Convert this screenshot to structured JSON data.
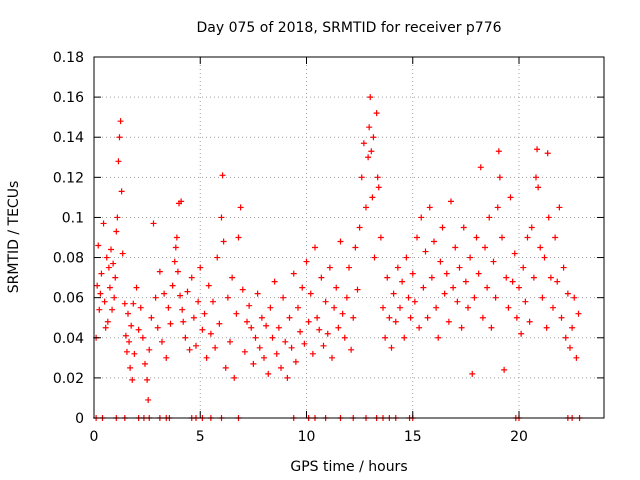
{
  "chart_data": {
    "type": "scatter",
    "title": "Day 075 of 2018, SRMTID for receiver p776",
    "xlabel": "GPS time / hours",
    "ylabel": "SRMTID / TECUs",
    "xlim": [
      0,
      24
    ],
    "ylim": [
      0,
      0.18
    ],
    "xticks": [
      0,
      5,
      10,
      15,
      20
    ],
    "xtick_labels": [
      "0",
      "5",
      "10",
      "15",
      "20"
    ],
    "yticks": [
      0,
      0.02,
      0.04,
      0.06,
      0.08,
      0.1,
      0.12,
      0.14,
      0.16,
      0.18
    ],
    "ytick_labels": [
      "0",
      "0.02",
      "0.04",
      "0.06",
      "0.08",
      "0.1",
      "0.12",
      "0.14",
      "0.16",
      "0.18"
    ],
    "grid": true,
    "marker": "+",
    "color": "#ff0000",
    "series": [
      {
        "name": "SRMTID",
        "points": [
          [
            0.1,
            0.04
          ],
          [
            0.15,
            0.066
          ],
          [
            0.2,
            0.086
          ],
          [
            0.25,
            0.054
          ],
          [
            0.3,
            0.062
          ],
          [
            0.35,
            0.072
          ],
          [
            0.45,
            0.097
          ],
          [
            0.5,
            0.058
          ],
          [
            0.55,
            0.045
          ],
          [
            0.6,
            0.08
          ],
          [
            0.65,
            0.048
          ],
          [
            0.7,
            0.075
          ],
          [
            0.75,
            0.065
          ],
          [
            0.8,
            0.084
          ],
          [
            0.85,
            0.054
          ],
          [
            0.9,
            0.077
          ],
          [
            0.95,
            0.06
          ],
          [
            1.0,
            0.07
          ],
          [
            1.05,
            0.093
          ],
          [
            1.1,
            0.1
          ],
          [
            1.15,
            0.128
          ],
          [
            1.2,
            0.14
          ],
          [
            1.25,
            0.148
          ],
          [
            1.3,
            0.113
          ],
          [
            1.35,
            0.082
          ],
          [
            1.45,
            0.057
          ],
          [
            1.5,
            0.041
          ],
          [
            1.55,
            0.033
          ],
          [
            1.6,
            0.052
          ],
          [
            1.65,
            0.038
          ],
          [
            1.7,
            0.025
          ],
          [
            1.75,
            0.046
          ],
          [
            1.8,
            0.019
          ],
          [
            1.85,
            0.057
          ],
          [
            1.9,
            0.032
          ],
          [
            2.0,
            0.065
          ],
          [
            2.1,
            0.044
          ],
          [
            2.2,
            0.055
          ],
          [
            2.3,
            0.04
          ],
          [
            2.4,
            0.027
          ],
          [
            2.5,
            0.019
          ],
          [
            2.55,
            0.009
          ],
          [
            2.6,
            0.034
          ],
          [
            2.7,
            0.05
          ],
          [
            2.8,
            0.097
          ],
          [
            2.9,
            0.06
          ],
          [
            3.0,
            0.045
          ],
          [
            3.1,
            0.073
          ],
          [
            3.2,
            0.038
          ],
          [
            3.3,
            0.062
          ],
          [
            3.4,
            0.03
          ],
          [
            3.5,
            0.055
          ],
          [
            3.6,
            0.047
          ],
          [
            3.7,
            0.066
          ],
          [
            3.8,
            0.078
          ],
          [
            3.85,
            0.085
          ],
          [
            3.9,
            0.09
          ],
          [
            3.95,
            0.073
          ],
          [
            4.0,
            0.107
          ],
          [
            4.05,
            0.061
          ],
          [
            4.1,
            0.108
          ],
          [
            4.15,
            0.054
          ],
          [
            4.2,
            0.048
          ],
          [
            4.3,
            0.04
          ],
          [
            4.4,
            0.063
          ],
          [
            4.5,
            0.034
          ],
          [
            4.6,
            0.07
          ],
          [
            4.7,
            0.05
          ],
          [
            4.8,
            0.036
          ],
          [
            4.9,
            0.058
          ],
          [
            5.0,
            0.075
          ],
          [
            5.1,
            0.044
          ],
          [
            5.2,
            0.052
          ],
          [
            5.3,
            0.03
          ],
          [
            5.4,
            0.066
          ],
          [
            5.5,
            0.042
          ],
          [
            5.6,
            0.058
          ],
          [
            5.7,
            0.035
          ],
          [
            5.8,
            0.08
          ],
          [
            5.9,
            0.047
          ],
          [
            6.0,
            0.1
          ],
          [
            6.05,
            0.121
          ],
          [
            6.1,
            0.088
          ],
          [
            6.2,
            0.025
          ],
          [
            6.3,
            0.06
          ],
          [
            6.4,
            0.038
          ],
          [
            6.5,
            0.07
          ],
          [
            6.6,
            0.02
          ],
          [
            6.7,
            0.052
          ],
          [
            6.8,
            0.09
          ],
          [
            6.9,
            0.105
          ],
          [
            7.0,
            0.064
          ],
          [
            7.1,
            0.033
          ],
          [
            7.2,
            0.048
          ],
          [
            7.3,
            0.056
          ],
          [
            7.4,
            0.045
          ],
          [
            7.5,
            0.027
          ],
          [
            7.6,
            0.04
          ],
          [
            7.7,
            0.062
          ],
          [
            7.8,
            0.035
          ],
          [
            7.9,
            0.05
          ],
          [
            8.0,
            0.03
          ],
          [
            8.1,
            0.046
          ],
          [
            8.2,
            0.022
          ],
          [
            8.3,
            0.055
          ],
          [
            8.4,
            0.04
          ],
          [
            8.5,
            0.068
          ],
          [
            8.6,
            0.032
          ],
          [
            8.7,
            0.045
          ],
          [
            8.8,
            0.025
          ],
          [
            8.9,
            0.06
          ],
          [
            9.0,
            0.038
          ],
          [
            9.1,
            0.02
          ],
          [
            9.2,
            0.05
          ],
          [
            9.3,
            0.035
          ],
          [
            9.4,
            0.072
          ],
          [
            9.5,
            0.028
          ],
          [
            9.6,
            0.055
          ],
          [
            9.7,
            0.043
          ],
          [
            9.8,
            0.065
          ],
          [
            9.9,
            0.037
          ],
          [
            10.0,
            0.078
          ],
          [
            10.1,
            0.048
          ],
          [
            10.2,
            0.062
          ],
          [
            10.3,
            0.032
          ],
          [
            10.4,
            0.085
          ],
          [
            10.5,
            0.05
          ],
          [
            10.6,
            0.044
          ],
          [
            10.7,
            0.07
          ],
          [
            10.8,
            0.036
          ],
          [
            10.9,
            0.058
          ],
          [
            11.0,
            0.042
          ],
          [
            11.1,
            0.075
          ],
          [
            11.2,
            0.03
          ],
          [
            11.3,
            0.055
          ],
          [
            11.4,
            0.065
          ],
          [
            11.5,
            0.045
          ],
          [
            11.6,
            0.088
          ],
          [
            11.7,
            0.052
          ],
          [
            11.8,
            0.04
          ],
          [
            11.9,
            0.06
          ],
          [
            12.0,
            0.075
          ],
          [
            12.1,
            0.034
          ],
          [
            12.2,
            0.05
          ],
          [
            12.3,
            0.085
          ],
          [
            12.4,
            0.064
          ],
          [
            12.5,
            0.095
          ],
          [
            12.6,
            0.12
          ],
          [
            12.7,
            0.137
          ],
          [
            12.8,
            0.105
          ],
          [
            12.9,
            0.13
          ],
          [
            12.95,
            0.145
          ],
          [
            13.0,
            0.16
          ],
          [
            13.05,
            0.133
          ],
          [
            13.1,
            0.11
          ],
          [
            13.15,
            0.14
          ],
          [
            13.2,
            0.08
          ],
          [
            13.3,
            0.152
          ],
          [
            13.35,
            0.12
          ],
          [
            13.4,
            0.115
          ],
          [
            13.5,
            0.09
          ],
          [
            13.6,
            0.055
          ],
          [
            13.7,
            0.04
          ],
          [
            13.8,
            0.07
          ],
          [
            13.9,
            0.05
          ],
          [
            14.0,
            0.035
          ],
          [
            14.1,
            0.062
          ],
          [
            14.2,
            0.048
          ],
          [
            14.3,
            0.075
          ],
          [
            14.4,
            0.055
          ],
          [
            14.5,
            0.068
          ],
          [
            14.6,
            0.04
          ],
          [
            14.7,
            0.08
          ],
          [
            14.8,
            0.06
          ],
          [
            14.9,
            0.05
          ],
          [
            15.0,
            0.072
          ],
          [
            15.1,
            0.058
          ],
          [
            15.2,
            0.09
          ],
          [
            15.3,
            0.045
          ],
          [
            15.4,
            0.1
          ],
          [
            15.5,
            0.065
          ],
          [
            15.6,
            0.083
          ],
          [
            15.7,
            0.05
          ],
          [
            15.8,
            0.105
          ],
          [
            15.9,
            0.07
          ],
          [
            16.0,
            0.088
          ],
          [
            16.1,
            0.055
          ],
          [
            16.2,
            0.04
          ],
          [
            16.3,
            0.078
          ],
          [
            16.4,
            0.095
          ],
          [
            16.5,
            0.062
          ],
          [
            16.6,
            0.072
          ],
          [
            16.7,
            0.048
          ],
          [
            16.8,
            0.108
          ],
          [
            16.9,
            0.065
          ],
          [
            17.0,
            0.085
          ],
          [
            17.1,
            0.058
          ],
          [
            17.2,
            0.075
          ],
          [
            17.3,
            0.045
          ],
          [
            17.4,
            0.095
          ],
          [
            17.5,
            0.068
          ],
          [
            17.6,
            0.055
          ],
          [
            17.7,
            0.08
          ],
          [
            17.8,
            0.022
          ],
          [
            17.9,
            0.06
          ],
          [
            18.0,
            0.09
          ],
          [
            18.1,
            0.072
          ],
          [
            18.2,
            0.125
          ],
          [
            18.3,
            0.05
          ],
          [
            18.4,
            0.085
          ],
          [
            18.5,
            0.065
          ],
          [
            18.6,
            0.1
          ],
          [
            18.7,
            0.045
          ],
          [
            18.8,
            0.078
          ],
          [
            18.9,
            0.06
          ],
          [
            19.0,
            0.105
          ],
          [
            19.05,
            0.133
          ],
          [
            19.1,
            0.12
          ],
          [
            19.2,
            0.09
          ],
          [
            19.3,
            0.024
          ],
          [
            19.4,
            0.07
          ],
          [
            19.5,
            0.055
          ],
          [
            19.6,
            0.11
          ],
          [
            19.7,
            0.068
          ],
          [
            19.8,
            0.082
          ],
          [
            19.9,
            0.05
          ],
          [
            20.0,
            0.065
          ],
          [
            20.1,
            0.042
          ],
          [
            20.2,
            0.075
          ],
          [
            20.3,
            0.058
          ],
          [
            20.4,
            0.09
          ],
          [
            20.5,
            0.048
          ],
          [
            20.6,
            0.095
          ],
          [
            20.7,
            0.07
          ],
          [
            20.8,
            0.12
          ],
          [
            20.85,
            0.134
          ],
          [
            20.9,
            0.115
          ],
          [
            21.0,
            0.085
          ],
          [
            21.1,
            0.06
          ],
          [
            21.2,
            0.08
          ],
          [
            21.3,
            0.045
          ],
          [
            21.35,
            0.132
          ],
          [
            21.4,
            0.1
          ],
          [
            21.5,
            0.07
          ],
          [
            21.6,
            0.055
          ],
          [
            21.7,
            0.09
          ],
          [
            21.8,
            0.068
          ],
          [
            21.9,
            0.105
          ],
          [
            22.0,
            0.05
          ],
          [
            22.1,
            0.075
          ],
          [
            22.2,
            0.04
          ],
          [
            22.3,
            0.062
          ],
          [
            22.4,
            0.035
          ],
          [
            22.5,
            0.045
          ],
          [
            22.6,
            0.06
          ],
          [
            22.7,
            0.03
          ],
          [
            22.8,
            0.052
          ],
          [
            0.1,
            0
          ],
          [
            0.4,
            0
          ],
          [
            1.05,
            0
          ],
          [
            1.45,
            0
          ],
          [
            2.1,
            0
          ],
          [
            2.35,
            0
          ],
          [
            2.6,
            0
          ],
          [
            3.1,
            0
          ],
          [
            3.4,
            0
          ],
          [
            3.55,
            0
          ],
          [
            4.6,
            0
          ],
          [
            4.8,
            0
          ],
          [
            5.1,
            0
          ],
          [
            5.5,
            0
          ],
          [
            6.0,
            0
          ],
          [
            6.8,
            0
          ],
          [
            9.4,
            0
          ],
          [
            10.1,
            0
          ],
          [
            10.4,
            0
          ],
          [
            10.9,
            0
          ],
          [
            11.6,
            0
          ],
          [
            12.2,
            0
          ],
          [
            12.8,
            0
          ],
          [
            13.3,
            0
          ],
          [
            13.6,
            0
          ],
          [
            13.9,
            0
          ],
          [
            14.2,
            0
          ],
          [
            14.85,
            0
          ],
          [
            15.0,
            0
          ],
          [
            19.85,
            0
          ],
          [
            20.0,
            0
          ],
          [
            22.3,
            0
          ],
          [
            22.5,
            0
          ],
          [
            22.85,
            0
          ]
        ]
      }
    ]
  }
}
